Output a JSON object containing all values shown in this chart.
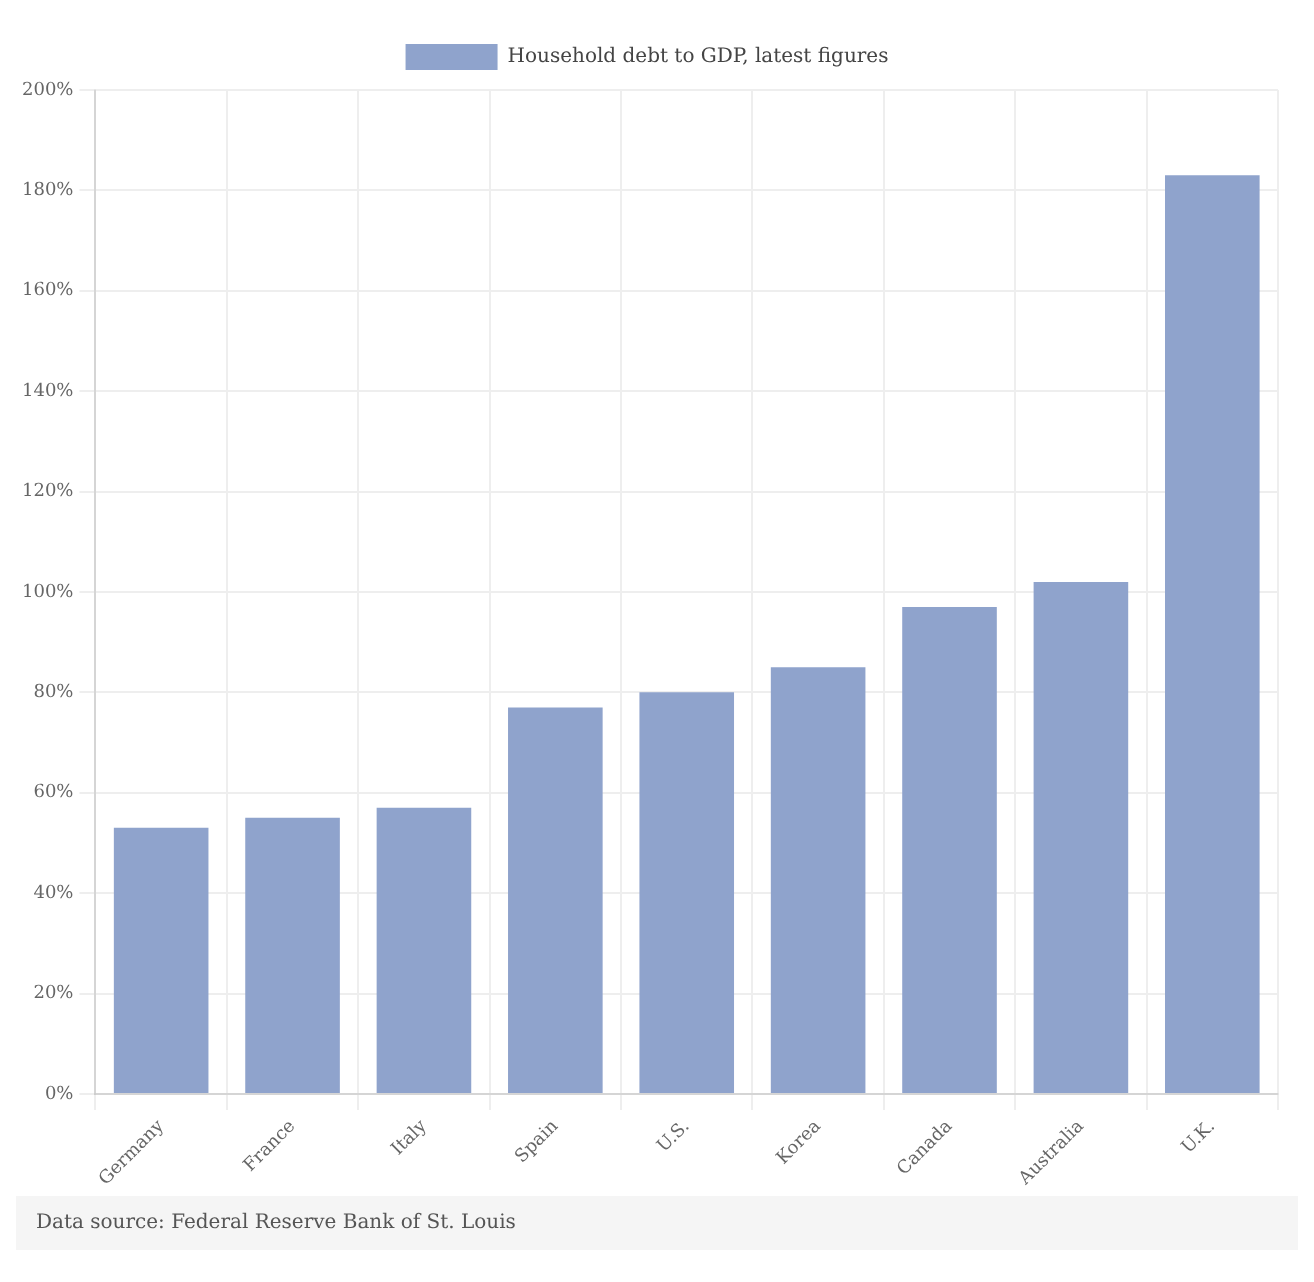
{
  "chart_data": {
    "type": "bar",
    "categories": [
      "Germany",
      "France",
      "Italy",
      "Spain",
      "U.S.",
      "Korea",
      "Canada",
      "Australia",
      "U.K."
    ],
    "series": [
      {
        "name": "Household debt to GDP, latest figures",
        "color": "#8fa3cc",
        "values": [
          53,
          55,
          57,
          77,
          80,
          85,
          97,
          102,
          183
        ]
      }
    ],
    "ylim": [
      0,
      200
    ],
    "yticks": [
      {
        "value": 0,
        "label": "0%"
      },
      {
        "value": 20,
        "label": "20%"
      },
      {
        "value": 40,
        "label": "40%"
      },
      {
        "value": 60,
        "label": "60%"
      },
      {
        "value": 80,
        "label": "80%"
      },
      {
        "value": 100,
        "label": "100%"
      },
      {
        "value": 120,
        "label": "120%"
      },
      {
        "value": 140,
        "label": "140%"
      },
      {
        "value": 160,
        "label": "160%"
      },
      {
        "value": 180,
        "label": "180%"
      },
      {
        "value": 200,
        "label": "200%"
      }
    ],
    "grid": true,
    "legend": "top",
    "annotations": [
      "Data source: Federal Reserve Bank of St. Louis"
    ]
  }
}
